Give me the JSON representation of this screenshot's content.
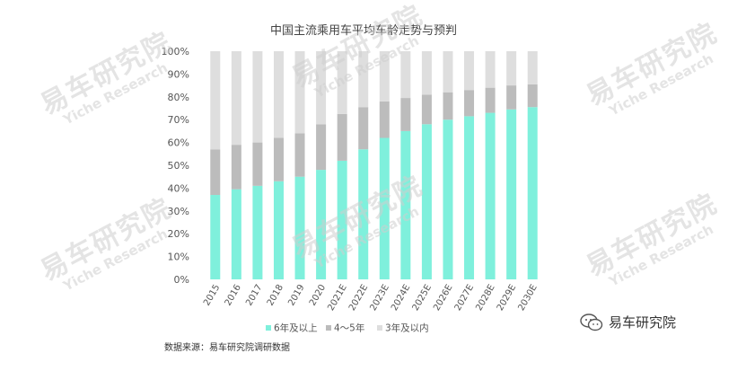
{
  "chart_data": {
    "type": "bar",
    "stacked": true,
    "title": "中国主流乘用车平均车龄走势与预判",
    "categories": [
      "2015",
      "2016",
      "2017",
      "2018",
      "2019",
      "2020",
      "2021E",
      "2022E",
      "2023E",
      "2024E",
      "2025E",
      "2026E",
      "2027E",
      "2028E",
      "2029E",
      "2030E"
    ],
    "series": [
      {
        "name": "6年及以上",
        "color": "#7ff0dc",
        "values": [
          37,
          39.5,
          41,
          43,
          45,
          48,
          52,
          57,
          62,
          65,
          68,
          70,
          71.5,
          73,
          74.5,
          75.5
        ]
      },
      {
        "name": "4～5年",
        "color": "#bcbcbc",
        "values": [
          20,
          19.5,
          19,
          19,
          19,
          20,
          20.5,
          18.5,
          16,
          14.5,
          13,
          12,
          11.5,
          11,
          10.5,
          10
        ]
      },
      {
        "name": "3年及以内",
        "color": "#dedede",
        "values": [
          43,
          41,
          40,
          38,
          36,
          32,
          27.5,
          24.5,
          22,
          20.5,
          19,
          18,
          17,
          16,
          15,
          14.5
        ]
      }
    ],
    "yticks": [
      "0%",
      "10%",
      "20%",
      "30%",
      "40%",
      "50%",
      "60%",
      "70%",
      "80%",
      "90%",
      "100%"
    ],
    "ylim": [
      0,
      100
    ],
    "legend": "bottom",
    "grid": false
  },
  "source_text": "数据来源：易车研究院调研数据",
  "logo": {
    "text": "易车研究院",
    "icon": "wechat-icon"
  },
  "watermark": {
    "cn": "易车研究院",
    "en": "Yiche Research"
  }
}
